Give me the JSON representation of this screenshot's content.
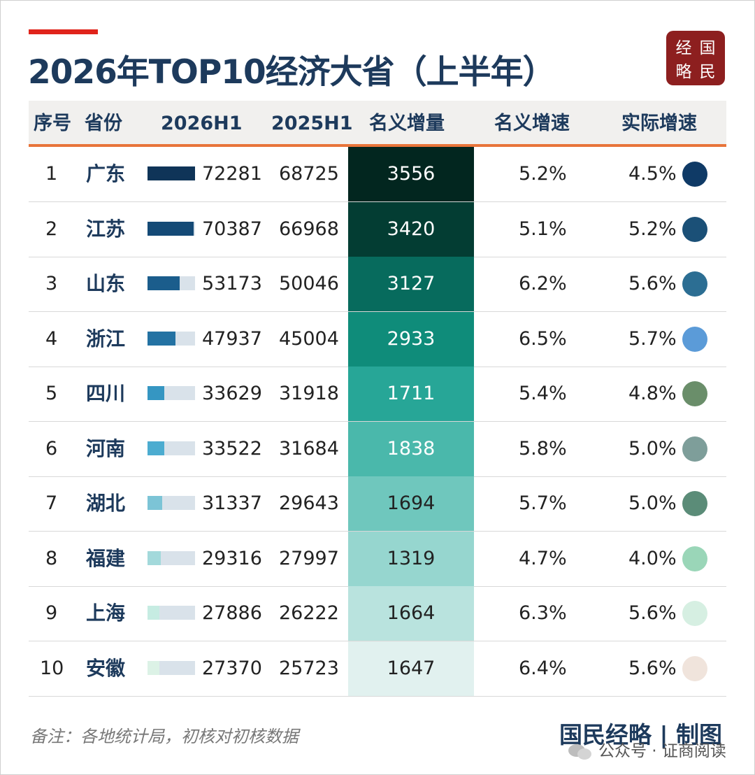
{
  "title": "2026年TOP10经济大省（上半年）",
  "logo": [
    "经",
    "国",
    "略",
    "民"
  ],
  "headers": [
    "序号",
    "省份",
    "2026H1",
    "2025H1",
    "名义增量",
    "名义增速",
    "实际增速"
  ],
  "note": "备注：各地统计局，初核对初核数据",
  "credit": "国民经略 | 制图",
  "watermark": "公众号 · 证商阅读",
  "colors": {
    "title": "#1d3a5c",
    "accent": "#e0241b",
    "header_underline": "#e8743a",
    "bar_fills": [
      "#0f3458",
      "#144a76",
      "#1b5d8c",
      "#2372a3",
      "#3596c2",
      "#4cacd0",
      "#7cc4d6",
      "#a3d9db",
      "#c6ece2",
      "#dcf2e6"
    ],
    "increment_fills": [
      "#02261f",
      "#033d33",
      "#076b5d",
      "#0f8c7a",
      "#27a697",
      "#4ab8ab",
      "#6fc7bd",
      "#96d6cf",
      "#b9e3de",
      "#e1f1ef"
    ],
    "increment_text": [
      "#ffffff",
      "#ffffff",
      "#ffffff",
      "#ffffff",
      "#ffffff",
      "#ffffff",
      "#222222",
      "#222222",
      "#222222",
      "#222222"
    ],
    "dot_fills": [
      "#0f3a66",
      "#1b5077",
      "#2c6e93",
      "#5b9bd8",
      "#6a8e6a",
      "#7e9e9a",
      "#5b8c78",
      "#9ad6b8",
      "#d6efe2",
      "#f0e4dc"
    ]
  },
  "chart_data": {
    "type": "table",
    "title": "2026年TOP10经济大省（上半年）",
    "columns": [
      "序号",
      "省份",
      "2026H1",
      "2025H1",
      "名义增量",
      "名义增速",
      "实际增速"
    ],
    "rows": [
      {
        "rank": "1",
        "province": "广东",
        "h1_2026": 72281,
        "h1_2025": 68725,
        "increment": 3556,
        "nominal_growth": "5.2%",
        "real_growth": "4.5%"
      },
      {
        "rank": "2",
        "province": "江苏",
        "h1_2026": 70387,
        "h1_2025": 66968,
        "increment": 3420,
        "nominal_growth": "5.1%",
        "real_growth": "5.2%"
      },
      {
        "rank": "3",
        "province": "山东",
        "h1_2026": 53173,
        "h1_2025": 50046,
        "increment": 3127,
        "nominal_growth": "6.2%",
        "real_growth": "5.6%"
      },
      {
        "rank": "4",
        "province": "浙江",
        "h1_2026": 47937,
        "h1_2025": 45004,
        "increment": 2933,
        "nominal_growth": "6.5%",
        "real_growth": "5.7%"
      },
      {
        "rank": "5",
        "province": "四川",
        "h1_2026": 33629,
        "h1_2025": 31918,
        "increment": 1711,
        "nominal_growth": "5.4%",
        "real_growth": "4.8%"
      },
      {
        "rank": "6",
        "province": "河南",
        "h1_2026": 33522,
        "h1_2025": 31684,
        "increment": 1838,
        "nominal_growth": "5.8%",
        "real_growth": "5.0%"
      },
      {
        "rank": "7",
        "province": "湖北",
        "h1_2026": 31337,
        "h1_2025": 29643,
        "increment": 1694,
        "nominal_growth": "5.7%",
        "real_growth": "5.0%"
      },
      {
        "rank": "8",
        "province": "福建",
        "h1_2026": 29316,
        "h1_2025": 27997,
        "increment": 1319,
        "nominal_growth": "4.7%",
        "real_growth": "4.0%"
      },
      {
        "rank": "9",
        "province": "上海",
        "h1_2026": 27886,
        "h1_2025": 26222,
        "increment": 1664,
        "nominal_growth": "6.3%",
        "real_growth": "5.6%"
      },
      {
        "rank": "10",
        "province": "安徽",
        "h1_2026": 27370,
        "h1_2025": 25723,
        "increment": 1647,
        "nominal_growth": "6.4%",
        "real_growth": "5.6%"
      }
    ],
    "bar_max": 72281
  }
}
